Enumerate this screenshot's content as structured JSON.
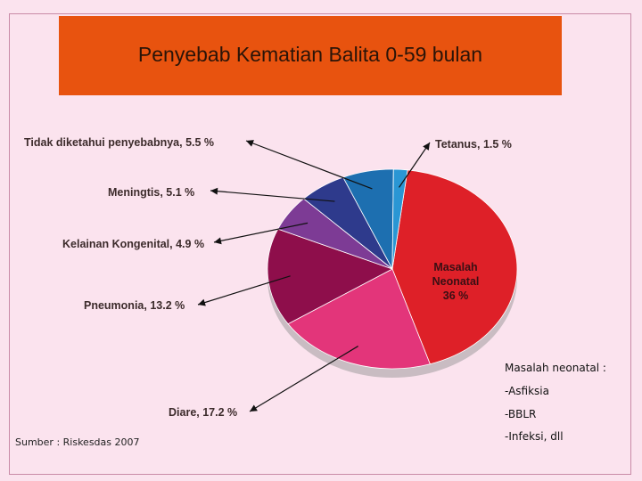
{
  "title": "Penyebab Kematian Balita 0-59 bulan",
  "chart_data": {
    "type": "pie",
    "title": "Penyebab Kematian Balita 0-59 bulan",
    "slices": [
      {
        "label": "Masalah Neonatal 36 %",
        "short": "Masalah",
        "lines": [
          "Masalah",
          "Neonatal",
          "36 %"
        ],
        "value": 36,
        "color": "#de2028"
      },
      {
        "label": "Diare, 17.2 %",
        "value": 17.2,
        "color": "#e3357a"
      },
      {
        "label": "Pneumonia, 13.2 %",
        "value": 13.2,
        "color": "#8e0e4b"
      },
      {
        "label": "Kelainan Kongenital, 4.9 %",
        "value": 4.9,
        "color": "#7d3b95"
      },
      {
        "label": "Meningtis, 5.1 %",
        "value": 5.1,
        "color": "#2e3a8c"
      },
      {
        "label": "Tidak diketahui penyebabnya, 5.5 %",
        "value": 5.5,
        "color": "#1d6fb0"
      },
      {
        "label": "Tetanus, 1.5 %",
        "value": 1.5,
        "color": "#2a96d4"
      }
    ]
  },
  "notes": {
    "heading": "Masalah neonatal :",
    "items": [
      "-Asfiksia",
      "-BBLR",
      "-Infeksi, dll"
    ]
  },
  "source": "Sumber : Riskesdas 2007"
}
